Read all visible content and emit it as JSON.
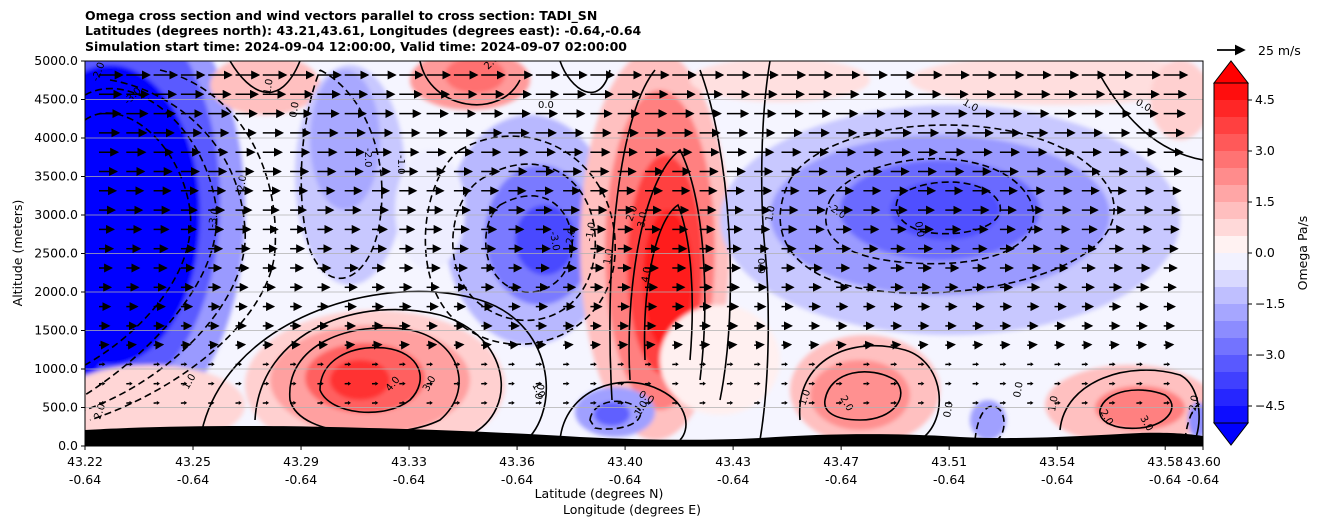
{
  "chart_data": {
    "type": "heatmap",
    "title_lines": [
      "Omega cross section and wind vectors parallel to cross section: TADI_SN",
      "Latitudes (degrees north): 43.21,43.61, Longitudes (degrees east): -0.64,-0.64",
      "Simulation start time: 2024-09-04 12:00:00, Valid time: 2024-09-07 02:00:00"
    ],
    "xlabel_lat": "Latitude (degrees N)",
    "xlabel_lon": "Longitude (degrees E)",
    "ylabel": "Altitude (meters)",
    "x_ticks": [
      {
        "lat": "43.22",
        "lon": "-0.64"
      },
      {
        "lat": "43.25",
        "lon": "-0.64"
      },
      {
        "lat": "43.29",
        "lon": "-0.64"
      },
      {
        "lat": "43.33",
        "lon": "-0.64"
      },
      {
        "lat": "43.36",
        "lon": "-0.64"
      },
      {
        "lat": "43.40",
        "lon": "-0.64"
      },
      {
        "lat": "43.43",
        "lon": "-0.64"
      },
      {
        "lat": "43.47",
        "lon": "-0.64"
      },
      {
        "lat": "43.51",
        "lon": "-0.64"
      },
      {
        "lat": "43.54",
        "lon": "-0.64"
      },
      {
        "lat": "43.58",
        "lon": "-0.64"
      },
      {
        "lat": "43.60",
        "lon": "-0.64"
      }
    ],
    "y_ticks": [
      "0.0",
      "500.0",
      "1000.0",
      "1500.0",
      "2000.0",
      "2500.0",
      "3000.0",
      "3500.0",
      "4000.0",
      "4500.0",
      "5000.0"
    ],
    "ylim": [
      0,
      5000
    ],
    "grid": "horizontal",
    "colorbar": {
      "label": "Omega Pa/s",
      "ticks": [
        "4.5",
        "3.0",
        "1.5",
        "0.0",
        "−1.5",
        "−3.0",
        "−4.5"
      ],
      "range": [
        -5,
        5
      ],
      "extend": "both",
      "cmap": "bwr"
    },
    "vector_key": {
      "label": "25 m/s"
    },
    "terrain_color": "#000000",
    "omega_cells": [
      {
        "x": 43.235,
        "z": 2800,
        "omega": -5.0
      },
      {
        "x": 43.235,
        "z": 1500,
        "omega": -4.0
      },
      {
        "x": 43.32,
        "z": 800,
        "omega": 4.3
      },
      {
        "x": 43.3,
        "z": 3200,
        "omega": -2.0
      },
      {
        "x": 43.37,
        "z": 2700,
        "omega": -3.5
      },
      {
        "x": 43.41,
        "z": 2300,
        "omega": 4.8
      },
      {
        "x": 43.39,
        "z": 400,
        "omega": -2.5
      },
      {
        "x": 43.52,
        "z": 2900,
        "omega": -3.3
      },
      {
        "x": 43.48,
        "z": 700,
        "omega": 2.2
      },
      {
        "x": 43.58,
        "z": 500,
        "omega": 3.0
      },
      {
        "x": 43.52,
        "z": 300,
        "omega": -1.5
      },
      {
        "x": 43.3,
        "z": 4700,
        "omega": 1.5
      },
      {
        "x": 43.35,
        "z": 4800,
        "omega": 2.0
      }
    ],
    "contour_labels": [
      "-2.0",
      "-3.0",
      "-1.0",
      "0.0",
      "1.0",
      "2.0",
      "3.0",
      "4.0",
      "-4.0"
    ]
  }
}
